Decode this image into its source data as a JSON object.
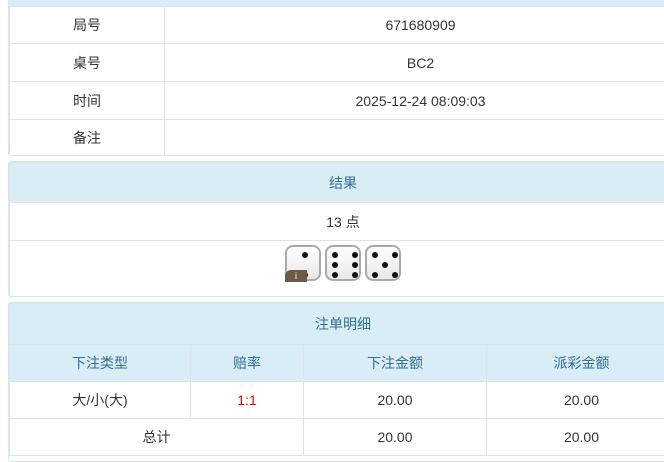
{
  "info": {
    "rows": [
      {
        "label": "局号",
        "value": "671680909"
      },
      {
        "label": "桌号",
        "value": "BC2"
      },
      {
        "label": "时间",
        "value": "2025-12-24 08:09:03"
      },
      {
        "label": "备注",
        "value": ""
      }
    ]
  },
  "result": {
    "title": "结果",
    "points": "13 点",
    "dice": [
      2,
      6,
      5
    ],
    "info_badge": "i"
  },
  "bets": {
    "title": "注单明细",
    "headers": [
      "下注类型",
      "赔率",
      "下注金额",
      "派彩金额"
    ],
    "rows": [
      {
        "type": "大/小(大)",
        "odds": "1:1",
        "amount": "20.00",
        "payout": "20.00"
      }
    ],
    "total": {
      "label": "总计",
      "amount": "20.00",
      "payout": "20.00"
    }
  },
  "colors": {
    "header_bg": "#d9edf7",
    "header_text": "#31708f",
    "odds": "#ee0000"
  }
}
